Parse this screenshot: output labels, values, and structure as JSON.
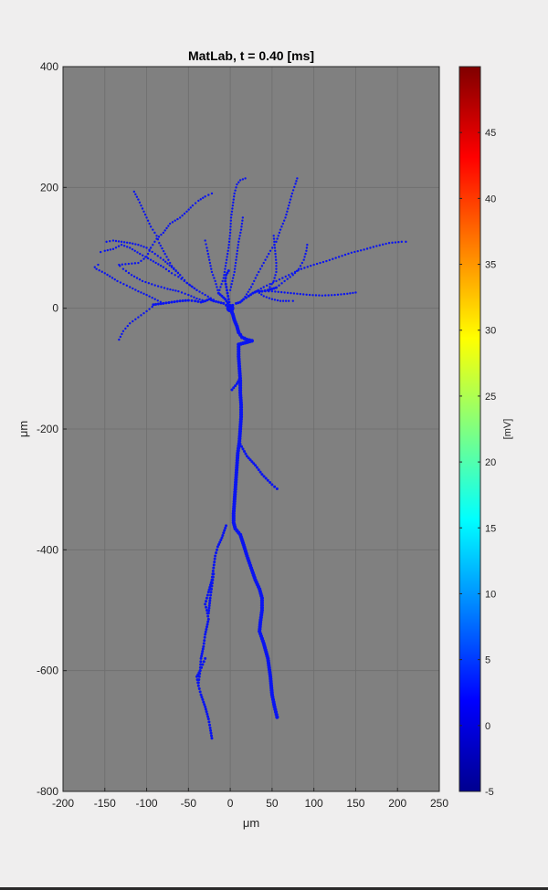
{
  "chart_data": {
    "type": "scatter",
    "title": "MatLab, t = 0.40 [ms]",
    "xlabel": "μm",
    "ylabel": "μm",
    "xlim": [
      -200,
      250
    ],
    "ylim": [
      -800,
      400
    ],
    "xticks": [
      -200,
      -150,
      -100,
      -50,
      0,
      50,
      100,
      150,
      200,
      250
    ],
    "yticks": [
      -800,
      -600,
      -400,
      -200,
      0,
      200,
      400
    ],
    "grid": true,
    "axes_background": "#808080",
    "grid_color": "#6e6e6e",
    "marker_color": "#0a14f0",
    "colorbar": {
      "label": "[mV]",
      "colormap": "jet",
      "clim": [
        -5,
        50
      ],
      "ticks": [
        -5,
        0,
        5,
        10,
        15,
        20,
        25,
        30,
        35,
        40,
        45
      ]
    },
    "series": [
      {
        "points": [
          [
            0,
            0
          ],
          [
            3,
            -10
          ],
          [
            5,
            -20
          ],
          [
            8,
            -30
          ],
          [
            10,
            -40
          ],
          [
            14,
            -48
          ],
          [
            20,
            -52
          ],
          [
            26,
            -54
          ],
          [
            10,
            -60
          ],
          [
            10,
            -80
          ],
          [
            11,
            -100
          ],
          [
            12,
            -120
          ],
          [
            12,
            -140
          ],
          [
            13,
            -160
          ],
          [
            13,
            -180
          ],
          [
            12,
            -200
          ],
          [
            11,
            -220
          ],
          [
            9,
            -240
          ],
          [
            8,
            -260
          ],
          [
            7,
            -280
          ],
          [
            6,
            -300
          ],
          [
            5,
            -320
          ],
          [
            4,
            -340
          ],
          [
            4,
            -355
          ],
          [
            6,
            -365
          ],
          [
            12,
            -375
          ],
          [
            16,
            -392
          ],
          [
            20,
            -410
          ],
          [
            25,
            -430
          ],
          [
            30,
            -450
          ],
          [
            35,
            -465
          ],
          [
            38,
            -480
          ],
          [
            38,
            -500
          ],
          [
            36,
            -520
          ],
          [
            35,
            -535
          ],
          [
            40,
            -555
          ],
          [
            45,
            -580
          ],
          [
            48,
            -610
          ],
          [
            50,
            -640
          ],
          [
            53,
            -660
          ],
          [
            56,
            -677
          ]
        ]
      },
      {
        "points": [
          [
            0,
            0
          ],
          [
            -5,
            5
          ],
          [
            -8,
            8
          ],
          [
            -14,
            10
          ],
          [
            -20,
            12
          ],
          [
            -25,
            15
          ],
          [
            -30,
            12
          ],
          [
            -35,
            10
          ],
          [
            -42,
            12
          ],
          [
            -50,
            13
          ],
          [
            -60,
            12
          ],
          [
            -70,
            10
          ],
          [
            -80,
            8
          ],
          [
            -92,
            6
          ]
        ]
      },
      {
        "points": [
          [
            0,
            0
          ],
          [
            3,
            5
          ],
          [
            7,
            8
          ],
          [
            12,
            10
          ],
          [
            16,
            15
          ],
          [
            22,
            20
          ],
          [
            27,
            25
          ],
          [
            32,
            28
          ],
          [
            38,
            28
          ],
          [
            45,
            30
          ],
          [
            50,
            32
          ],
          [
            55,
            34
          ]
        ]
      },
      {
        "points": [
          [
            0,
            0
          ],
          [
            -3,
            8
          ],
          [
            -6,
            15
          ],
          [
            -10,
            20
          ],
          [
            -14,
            25
          ]
        ]
      },
      {
        "points": [
          [
            0,
            0
          ],
          [
            -2,
            15
          ],
          [
            -4,
            30
          ],
          [
            -6,
            45
          ],
          [
            -5,
            55
          ],
          [
            -2,
            62
          ]
        ]
      },
      {
        "points": [
          [
            12,
            -115
          ],
          [
            8,
            -125
          ],
          [
            2,
            -135
          ]
        ]
      },
      {
        "points": [
          [
            12,
            -225
          ],
          [
            20,
            -245
          ],
          [
            30,
            -260
          ],
          [
            38,
            -275
          ],
          [
            45,
            -285
          ],
          [
            50,
            -292
          ],
          [
            56,
            -299
          ]
        ]
      },
      {
        "points": [
          [
            -5,
            -360
          ],
          [
            -10,
            -380
          ],
          [
            -15,
            -395
          ],
          [
            -18,
            -410
          ],
          [
            -20,
            -430
          ],
          [
            -22,
            -450
          ],
          [
            -26,
            -470
          ],
          [
            -28,
            -480
          ],
          [
            -30,
            -490
          ],
          [
            -28,
            -500
          ],
          [
            -26,
            -515
          ],
          [
            -30,
            -540
          ],
          [
            -32,
            -560
          ],
          [
            -35,
            -580
          ],
          [
            -36,
            -600
          ],
          [
            -38,
            -620
          ]
        ]
      },
      {
        "points": [
          [
            -20,
            -440
          ],
          [
            -22,
            -460
          ],
          [
            -24,
            -480
          ],
          [
            -26,
            -505
          ]
        ]
      },
      {
        "points": [
          [
            -30,
            -580
          ],
          [
            -33,
            -590
          ],
          [
            -36,
            -600
          ],
          [
            -40,
            -610
          ],
          [
            -38,
            -625
          ],
          [
            -35,
            -640
          ],
          [
            -30,
            -660
          ],
          [
            -26,
            -680
          ],
          [
            -24,
            -695
          ],
          [
            -22,
            -712
          ]
        ]
      },
      {
        "points": [
          [
            -30,
            12
          ],
          [
            -40,
            16
          ],
          [
            -50,
            22
          ],
          [
            -62,
            28
          ],
          [
            -75,
            32
          ],
          [
            -90,
            38
          ],
          [
            -105,
            45
          ],
          [
            -118,
            55
          ],
          [
            -128,
            65
          ],
          [
            -132,
            70
          ],
          [
            -133,
            72
          ],
          [
            -110,
            75
          ],
          [
            -100,
            85
          ],
          [
            -95,
            100
          ],
          [
            -88,
            115
          ],
          [
            -80,
            125
          ],
          [
            -72,
            140
          ],
          [
            -60,
            150
          ],
          [
            -52,
            160
          ],
          [
            -45,
            170
          ],
          [
            -38,
            178
          ],
          [
            -30,
            185
          ],
          [
            -22,
            190
          ]
        ]
      },
      {
        "points": [
          [
            -20,
            14
          ],
          [
            -30,
            22
          ],
          [
            -40,
            30
          ],
          [
            -52,
            42
          ],
          [
            -60,
            55
          ],
          [
            -70,
            68
          ],
          [
            -80,
            80
          ],
          [
            -90,
            90
          ],
          [
            -100,
            100
          ],
          [
            -110,
            105
          ],
          [
            -120,
            108
          ],
          [
            -130,
            110
          ],
          [
            -140,
            112
          ],
          [
            -148,
            110
          ]
        ]
      },
      {
        "points": [
          [
            -60,
            55
          ],
          [
            -70,
            70
          ],
          [
            -78,
            90
          ],
          [
            -85,
            108
          ],
          [
            -88,
            120
          ],
          [
            -95,
            135
          ],
          [
            -100,
            150
          ],
          [
            -105,
            165
          ],
          [
            -110,
            180
          ],
          [
            -115,
            193
          ]
        ]
      },
      {
        "points": [
          [
            -40,
            30
          ],
          [
            -48,
            38
          ],
          [
            -55,
            45
          ],
          [
            -62,
            52
          ],
          [
            -70,
            58
          ],
          [
            -80,
            68
          ],
          [
            -95,
            80
          ],
          [
            -108,
            90
          ],
          [
            -120,
            100
          ],
          [
            -130,
            105
          ],
          [
            -140,
            98
          ],
          [
            -150,
            95
          ],
          [
            -155,
            93
          ]
        ]
      },
      {
        "points": [
          [
            -80,
            8
          ],
          [
            -90,
            15
          ],
          [
            -100,
            22
          ],
          [
            -110,
            28
          ],
          [
            -120,
            35
          ],
          [
            -135,
            45
          ],
          [
            -150,
            58
          ],
          [
            -160,
            65
          ],
          [
            -162,
            68
          ],
          [
            -158,
            72
          ]
        ]
      },
      {
        "points": [
          [
            -90,
            6
          ],
          [
            -100,
            -5
          ],
          [
            -110,
            -15
          ],
          [
            -120,
            -25
          ],
          [
            -128,
            -38
          ],
          [
            -133,
            -52
          ]
        ]
      },
      {
        "points": [
          [
            -14,
            25
          ],
          [
            -18,
            45
          ],
          [
            -22,
            60
          ],
          [
            -25,
            80
          ],
          [
            -28,
            100
          ],
          [
            -30,
            112
          ]
        ]
      },
      {
        "points": [
          [
            -14,
            25
          ],
          [
            -8,
            50
          ],
          [
            -5,
            75
          ],
          [
            -2,
            100
          ],
          [
            0,
            125
          ],
          [
            1,
            150
          ],
          [
            3,
            170
          ],
          [
            5,
            190
          ],
          [
            8,
            205
          ],
          [
            12,
            212
          ],
          [
            18,
            215
          ]
        ]
      },
      {
        "points": [
          [
            0,
            30
          ],
          [
            5,
            60
          ],
          [
            8,
            90
          ],
          [
            10,
            110
          ],
          [
            13,
            130
          ],
          [
            15,
            150
          ]
        ]
      },
      {
        "points": [
          [
            16,
            15
          ],
          [
            25,
            35
          ],
          [
            32,
            55
          ],
          [
            40,
            75
          ],
          [
            48,
            95
          ],
          [
            55,
            110
          ],
          [
            60,
            130
          ],
          [
            66,
            150
          ],
          [
            70,
            170
          ],
          [
            74,
            190
          ],
          [
            78,
            206
          ],
          [
            80,
            215
          ]
        ]
      },
      {
        "points": [
          [
            27,
            25
          ],
          [
            40,
            35
          ],
          [
            55,
            45
          ],
          [
            70,
            55
          ],
          [
            85,
            65
          ],
          [
            100,
            72
          ],
          [
            115,
            78
          ],
          [
            130,
            85
          ],
          [
            145,
            92
          ],
          [
            160,
            97
          ],
          [
            175,
            103
          ],
          [
            190,
            108
          ],
          [
            205,
            110
          ],
          [
            210,
            110
          ]
        ]
      },
      {
        "points": [
          [
            55,
            34
          ],
          [
            65,
            45
          ],
          [
            75,
            55
          ],
          [
            82,
            65
          ],
          [
            88,
            80
          ],
          [
            91,
            95
          ],
          [
            92,
            105
          ]
        ]
      },
      {
        "points": [
          [
            38,
            28
          ],
          [
            50,
            28
          ],
          [
            65,
            26
          ],
          [
            80,
            24
          ],
          [
            95,
            22
          ],
          [
            110,
            21
          ],
          [
            125,
            22
          ],
          [
            140,
            24
          ],
          [
            150,
            26
          ]
        ]
      },
      {
        "points": [
          [
            32,
            28
          ],
          [
            40,
            20
          ],
          [
            50,
            15
          ],
          [
            60,
            12
          ],
          [
            70,
            12
          ],
          [
            75,
            12
          ]
        ]
      },
      {
        "points": [
          [
            45,
            30
          ],
          [
            52,
            45
          ],
          [
            55,
            60
          ],
          [
            55,
            75
          ],
          [
            54,
            90
          ],
          [
            53,
            105
          ],
          [
            52,
            120
          ]
        ]
      }
    ]
  }
}
